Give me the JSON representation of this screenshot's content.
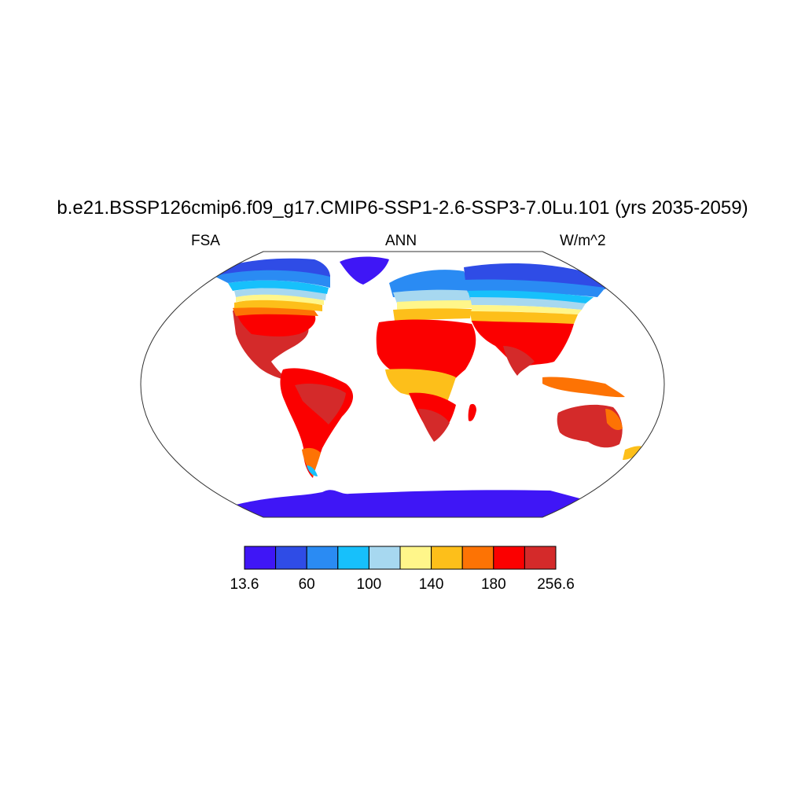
{
  "title": "b.e21.BSSP126cmip6.f09_g17.CMIP6-SSP1-2.6-SSP3-7.0Lu.101 (yrs 2035-2059)",
  "left_label": "FSA",
  "center_label": "ANN",
  "right_label": "W/m^2",
  "colorbar": {
    "colors": [
      "#3f16f6",
      "#2f4ce6",
      "#2a8bf3",
      "#17c0fb",
      "#a7d8f0",
      "#fff68a",
      "#fdbf1a",
      "#fd7304",
      "#fb0000",
      "#d42a2a"
    ],
    "labels": [
      "13.6",
      "60",
      "100",
      "140",
      "180",
      "256.6"
    ]
  },
  "map": {
    "projection": "Robinson",
    "background": "#ffffff",
    "ocean": "#ffffff"
  }
}
